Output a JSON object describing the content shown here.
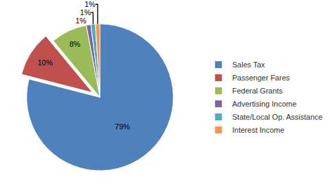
{
  "chart_data": {
    "type": "pie",
    "categories": [
      "Sales Tax",
      "Passenger Fares",
      "Federal Grants",
      "Advertising Income",
      "State/Local Op. Assistance",
      "Interest Income"
    ],
    "values": [
      79,
      10,
      8,
      1,
      1,
      1
    ],
    "value_labels": [
      "79%",
      "10%",
      "8%",
      "1%",
      "1%",
      "1%"
    ],
    "colors": [
      "#4f81bd",
      "#c0504d",
      "#9bbb59",
      "#8064a2",
      "#4bacc6",
      "#f79646"
    ],
    "data_labels": true,
    "legend": "right"
  }
}
